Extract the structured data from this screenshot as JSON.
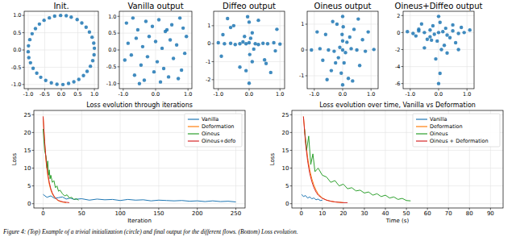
{
  "caption": "Figure 4: (Top) Example of a trivial initialization (circle) and final output for the different flows. (Bottom) Loss evolution.",
  "chart_data": [
    {
      "type": "scatter",
      "title": "Init.",
      "xlim": [
        -1.12,
        1.12
      ],
      "ylim": [
        -1.12,
        1.12
      ],
      "grid": true,
      "xticks": [
        {
          "value": -1,
          "label": "-1.0"
        },
        {
          "value": -0.5,
          "label": "-0.5"
        },
        {
          "value": 0,
          "label": "0.0"
        },
        {
          "value": 0.5,
          "label": "0.5"
        },
        {
          "value": 1,
          "label": "1.0"
        }
      ],
      "yticks": [
        {
          "value": -1,
          "label": "-1.0"
        },
        {
          "value": -0.5,
          "label": "-0.5"
        },
        {
          "value": 0,
          "label": "0.0"
        },
        {
          "value": 0.5,
          "label": "0.5"
        },
        {
          "value": 1,
          "label": "1.0"
        }
      ],
      "series": [
        {
          "color": "#1f77b4",
          "x": [
            1.0,
            0.98,
            0.93,
            0.85,
            0.75,
            0.62,
            0.48,
            0.3,
            0.15,
            -0.02,
            -0.2,
            -0.36,
            -0.52,
            -0.66,
            -0.78,
            -0.88,
            -0.95,
            -0.99,
            -1.0,
            -0.98,
            -0.93,
            -0.85,
            -0.74,
            -0.62,
            -0.47,
            -0.3,
            -0.13,
            0.05,
            0.22,
            0.38,
            0.53,
            0.67,
            0.78,
            0.88,
            0.95,
            0.99
          ],
          "values": [
            0.05,
            0.2,
            0.37,
            0.52,
            0.66,
            0.78,
            0.88,
            0.95,
            0.99,
            1.0,
            0.98,
            0.93,
            0.86,
            0.75,
            0.62,
            0.47,
            0.3,
            0.12,
            -0.05,
            -0.22,
            -0.37,
            -0.53,
            -0.67,
            -0.79,
            -0.88,
            -0.95,
            -0.99,
            -1.0,
            -0.97,
            -0.92,
            -0.85,
            -0.74,
            -0.62,
            -0.47,
            -0.31,
            -0.14
          ]
        }
      ]
    },
    {
      "type": "scatter",
      "title": "Vanilla output",
      "xlim": [
        -1.12,
        1.12
      ],
      "ylim": [
        -1.15,
        1.15
      ],
      "grid": true,
      "xticks": [
        {
          "value": -1,
          "label": "-1.0"
        },
        {
          "value": 0,
          "label": "0.0"
        },
        {
          "value": 1,
          "label": "1.0"
        }
      ],
      "yticks": [
        {
          "value": -1,
          "label": "-1.0"
        },
        {
          "value": -0.5,
          "label": "-0.5"
        },
        {
          "value": 0,
          "label": "0.0"
        },
        {
          "value": 0.5,
          "label": "0.5"
        },
        {
          "value": 1,
          "label": "1.0"
        }
      ],
      "series": [
        {
          "color": "#1f77b4",
          "x": [
            -0.9,
            -0.7,
            -0.55,
            -0.3,
            -0.1,
            0.1,
            0.3,
            0.5,
            0.75,
            0.95,
            -0.85,
            -0.6,
            -0.4,
            -0.2,
            0.0,
            0.2,
            0.45,
            0.65,
            0.9,
            -0.95,
            -0.75,
            -0.45,
            -0.25,
            0.05,
            0.25,
            0.55,
            0.8,
            -0.65,
            -0.35,
            -0.05,
            0.15,
            0.4,
            0.7,
            -0.5,
            0.35,
            0.85
          ],
          "values": [
            0.8,
            0.95,
            0.6,
            0.85,
            0.7,
            0.9,
            0.55,
            0.75,
            0.95,
            0.4,
            0.2,
            0.35,
            0.1,
            0.4,
            0.25,
            0.05,
            0.3,
            0.15,
            -0.1,
            -0.3,
            -0.15,
            -0.45,
            -0.2,
            -0.35,
            -0.55,
            -0.25,
            -0.6,
            -0.75,
            -0.9,
            -0.65,
            -0.95,
            -0.8,
            -0.85,
            -1.0,
            0.6,
            0.65
          ]
        }
      ]
    },
    {
      "type": "scatter",
      "title": "Diffeo output",
      "xlim": [
        -1.15,
        1.15
      ],
      "ylim": [
        -2.5,
        1.8
      ],
      "grid": true,
      "xticks": [
        {
          "value": -1,
          "label": "-1.0"
        },
        {
          "value": 0,
          "label": "0.0"
        },
        {
          "value": 1,
          "label": "1.0"
        }
      ],
      "yticks": [
        -2,
        -1,
        0,
        1
      ],
      "series": [
        {
          "color": "#1f77b4",
          "x": [
            -1.0,
            -0.8,
            -0.6,
            -0.45,
            -0.3,
            -0.2,
            -0.1,
            0.0,
            0.05,
            0.1,
            0.2,
            0.3,
            0.45,
            0.6,
            0.8,
            1.0,
            0.0,
            -0.05,
            0.02,
            0.1,
            -0.1,
            0.0,
            -0.6,
            -0.5,
            0.5,
            0.55,
            -0.9,
            0.9,
            0.3,
            -0.3,
            0.7,
            -0.7,
            0.15,
            -0.15,
            0.85,
            -0.85
          ],
          "values": [
            0.05,
            0.0,
            0.02,
            -0.05,
            0.0,
            0.1,
            0.0,
            0.05,
            0.3,
            0.6,
            0.0,
            -0.05,
            0.02,
            0.0,
            0.05,
            -0.02,
            1.2,
            1.5,
            -0.6,
            -1.0,
            -1.5,
            -2.2,
            0.9,
            1.0,
            -0.9,
            -1.1,
            -0.7,
            0.8,
            1.3,
            -1.3,
            -1.6,
            1.4,
            -0.3,
            0.4,
            -0.4,
            0.5
          ]
        }
      ]
    },
    {
      "type": "scatter",
      "title": "Oineus output",
      "xlim": [
        -1.25,
        1.25
      ],
      "ylim": [
        -1.5,
        1.5
      ],
      "grid": true,
      "xticks": [
        {
          "value": -1,
          "label": "-1.0"
        },
        {
          "value": 0,
          "label": "0.0"
        },
        {
          "value": 1,
          "label": "1.0"
        }
      ],
      "yticks": [
        -1,
        0,
        1
      ],
      "series": [
        {
          "color": "#1f77b4",
          "x": [
            -1.1,
            -0.8,
            -0.5,
            -0.3,
            -0.1,
            0.0,
            0.1,
            0.3,
            0.5,
            0.8,
            1.1,
            0.0,
            0.02,
            -0.02,
            0.05,
            -0.05,
            0.0,
            -0.6,
            0.6,
            -0.4,
            0.4,
            -0.7,
            0.7,
            -0.2,
            0.2,
            0.9,
            -0.9,
            0.15,
            -0.15,
            0.35,
            -0.35,
            0.0,
            0.25,
            -0.25,
            0.55,
            -0.55
          ],
          "values": [
            0.0,
            0.05,
            0.0,
            -0.05,
            0.1,
            0.0,
            -0.1,
            0.05,
            0.0,
            -0.05,
            0.02,
            1.3,
            0.9,
            0.6,
            -0.5,
            -0.9,
            -1.35,
            0.6,
            -0.6,
            -0.8,
            0.8,
            -0.4,
            0.4,
            1.0,
            -1.1,
            0.7,
            0.7,
            0.3,
            -0.3,
            -1.2,
            1.1,
            0.35,
            0.5,
            -0.5,
            1.2,
            -1.15
          ]
        }
      ]
    },
    {
      "type": "scatter",
      "title": "Oineus+Diffeo output",
      "xlim": [
        -1.25,
        1.25
      ],
      "ylim": [
        -6.6,
        2.5
      ],
      "grid": true,
      "xticks": [
        {
          "value": -1,
          "label": "-1.0"
        },
        {
          "value": 0,
          "label": "0.0"
        },
        {
          "value": 1,
          "label": "1.0"
        }
      ],
      "yticks": [
        -6,
        -4,
        -2,
        0,
        2
      ],
      "series": [
        {
          "color": "#1f77b4",
          "x": [
            -1.1,
            -0.9,
            -0.7,
            -0.5,
            -0.3,
            -0.15,
            0.0,
            0.15,
            0.3,
            0.5,
            0.7,
            0.9,
            1.1,
            0.0,
            0.05,
            -0.05,
            0.1,
            -0.1,
            0.2,
            -0.2,
            0.4,
            -0.4,
            0.6,
            -0.6,
            0.8,
            -0.8,
            0.0,
            0.3,
            -0.3,
            0.05,
            0.5,
            -0.5,
            0.25,
            -0.25,
            0.7,
            -0.7
          ],
          "values": [
            0.1,
            -0.1,
            0.2,
            0.0,
            0.3,
            -0.2,
            0.0,
            0.1,
            -0.3,
            0.2,
            -0.1,
            0.0,
            0.3,
            1.9,
            1.2,
            -1.0,
            -2.0,
            -3.1,
            -1.5,
            0.8,
            -0.6,
            -0.8,
            -1.2,
            1.0,
            0.6,
            -0.4,
            -6.0,
            -2.4,
            -0.5,
            -4.8,
            0.9,
            -1.8,
            0.5,
            -0.9,
            -2.0,
            0.4
          ]
        }
      ]
    },
    {
      "type": "line",
      "title": "Loss evolution through iterations",
      "x_label": "Iteration",
      "y_label": "Loss",
      "xlim": [
        -12,
        262
      ],
      "ylim": [
        -1.2,
        26.2
      ],
      "xticks": [
        0,
        50,
        100,
        150,
        200,
        250
      ],
      "yticks": [
        0,
        5,
        10,
        15,
        20,
        25
      ],
      "grid": true,
      "legend": "upper right",
      "series": [
        {
          "name": "Vanilla",
          "color": "#1f77b4",
          "x": [
            0,
            5,
            10,
            15,
            20,
            25,
            30,
            35,
            40,
            50,
            60,
            70,
            80,
            90,
            100,
            110,
            120,
            130,
            140,
            150,
            160,
            170,
            180,
            190,
            200,
            210,
            220,
            230,
            240,
            250
          ],
          "values": [
            2.6,
            1.8,
            2.2,
            1.5,
            1.7,
            1.9,
            1.3,
            1.6,
            1.2,
            1.4,
            1.0,
            1.3,
            1.1,
            1.2,
            0.9,
            1.2,
            1.0,
            1.1,
            0.8,
            1.0,
            0.9,
            0.8,
            0.9,
            0.7,
            0.8,
            0.6,
            0.8,
            0.6,
            0.7,
            0.5
          ]
        },
        {
          "name": "Deformation",
          "color": "#ff7f0e",
          "x": [
            0,
            2,
            4,
            6,
            8,
            10,
            12,
            15,
            18,
            21,
            24,
            27,
            30
          ],
          "values": [
            24.5,
            17,
            11.5,
            8,
            5.5,
            3.8,
            2.7,
            1.7,
            1.1,
            0.7,
            0.5,
            0.4,
            0.3
          ]
        },
        {
          "name": "Oineus",
          "color": "#2ca02c",
          "x": [
            0,
            2,
            4,
            5,
            6,
            7,
            8,
            9,
            10,
            12,
            14,
            16,
            18,
            20,
            22,
            25,
            28,
            31,
            34,
            37,
            40,
            43,
            46
          ],
          "values": [
            21,
            15,
            13,
            10,
            12,
            8,
            9.5,
            7,
            8,
            6,
            6.5,
            4.5,
            5,
            3.5,
            3.8,
            2.8,
            2.2,
            2.5,
            1.6,
            1.8,
            1.2,
            1.4,
            1.0
          ]
        },
        {
          "name": "Oineus+defo",
          "color": "#d62728",
          "x": [
            0,
            2,
            4,
            6,
            8,
            10,
            12,
            14,
            16,
            18,
            20,
            23,
            26,
            30,
            34
          ],
          "values": [
            24.5,
            17.5,
            12,
            8.5,
            6,
            4.2,
            3,
            2.2,
            1.6,
            1.2,
            0.9,
            0.7,
            0.5,
            0.4,
            0.3
          ]
        }
      ]
    },
    {
      "type": "line",
      "title": "Loss evolution over time, Vanilla vs Deformation",
      "x_label": "Time (s)",
      "y_label": "Loss",
      "xlim": [
        -4.5,
        96
      ],
      "ylim": [
        -1.2,
        26.2
      ],
      "xticks": [
        0,
        10,
        20,
        30,
        40,
        50,
        60,
        70,
        80,
        90
      ],
      "yticks": [
        0,
        5,
        10,
        15,
        20,
        25
      ],
      "grid": true,
      "legend": "upper right",
      "series": [
        {
          "name": "Vanilla",
          "color": "#1f77b4",
          "x": [
            0.2,
            1,
            2,
            3,
            4,
            5,
            6,
            7,
            8,
            9,
            10
          ],
          "values": [
            2.6,
            2.0,
            2.3,
            1.6,
            1.9,
            1.4,
            1.6,
            1.1,
            1.3,
            0.9,
            1.0
          ]
        },
        {
          "name": "Deformation",
          "color": "#ff7f0e",
          "x": [
            1,
            2,
            3,
            4,
            5,
            6,
            7,
            8,
            10,
            12,
            14,
            16,
            18,
            20
          ],
          "values": [
            24.5,
            18,
            13,
            9.5,
            7,
            5.2,
            3.8,
            2.8,
            1.6,
            1.0,
            0.7,
            0.5,
            0.4,
            0.3
          ]
        },
        {
          "name": "Oineus",
          "color": "#2ca02c",
          "x": [
            1.5,
            2.5,
            3.5,
            4.5,
            5.5,
            6.5,
            8,
            10,
            12,
            14,
            16,
            18,
            20,
            22,
            24,
            26,
            28,
            30,
            32,
            34,
            36,
            38,
            40,
            42,
            44,
            46,
            48,
            50,
            52
          ],
          "values": [
            21,
            15,
            19,
            11,
            14,
            9,
            10,
            8,
            7.5,
            6,
            6.5,
            5,
            5.5,
            4.2,
            4.5,
            3.6,
            3.8,
            3,
            3.3,
            2.4,
            2.8,
            2.0,
            2.4,
            1.6,
            1.9,
            1.2,
            1.5,
            0.9,
            0.8
          ]
        },
        {
          "name": "Oineus + Deformation",
          "color": "#d62728",
          "x": [
            1,
            2,
            3,
            4,
            5,
            6,
            7,
            8,
            10,
            12,
            14,
            16,
            18,
            20,
            22
          ],
          "values": [
            24.5,
            17,
            12,
            8.5,
            6.2,
            4.5,
            3.3,
            2.4,
            1.5,
            1.0,
            0.7,
            0.5,
            0.4,
            0.3,
            0.3
          ]
        }
      ]
    }
  ]
}
